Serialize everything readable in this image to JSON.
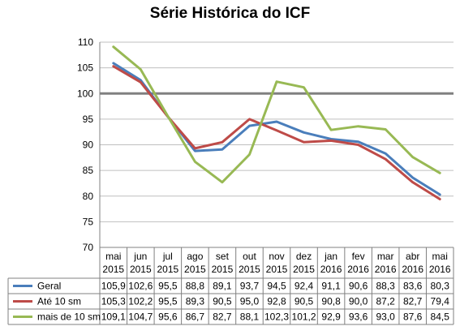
{
  "chart_data": {
    "type": "line",
    "title": "Série Histórica do ICF",
    "xlabel": "",
    "ylabel": "",
    "ylim": [
      70,
      110
    ],
    "yticks": [
      70,
      75,
      80,
      85,
      90,
      95,
      100,
      105,
      110
    ],
    "reference_line": 100,
    "legend": "data table below chart",
    "categories": [
      {
        "month": "mai",
        "year": "2015"
      },
      {
        "month": "jun",
        "year": "2015"
      },
      {
        "month": "jul",
        "year": "2015"
      },
      {
        "month": "ago",
        "year": "2015"
      },
      {
        "month": "set",
        "year": "2015"
      },
      {
        "month": "out",
        "year": "2015"
      },
      {
        "month": "nov",
        "year": "2015"
      },
      {
        "month": "dez",
        "year": "2015"
      },
      {
        "month": "jan",
        "year": "2016"
      },
      {
        "month": "fev",
        "year": "2016"
      },
      {
        "month": "mar",
        "year": "2016"
      },
      {
        "month": "abr",
        "year": "2016"
      },
      {
        "month": "mai",
        "year": "2016"
      }
    ],
    "series": [
      {
        "name": "Geral",
        "color": "#4a7ebb",
        "values": [
          105.9,
          102.6,
          95.5,
          88.8,
          89.1,
          93.7,
          94.5,
          92.4,
          91.1,
          90.6,
          88.3,
          83.6,
          80.3
        ],
        "labels": [
          "105,9",
          "102,6",
          "95,5",
          "88,8",
          "89,1",
          "93,7",
          "94,5",
          "92,4",
          "91,1",
          "90,6",
          "88,3",
          "83,6",
          "80,3"
        ]
      },
      {
        "name": "Até 10 sm",
        "color": "#be4b48",
        "values": [
          105.3,
          102.2,
          95.5,
          89.3,
          90.5,
          95.0,
          92.8,
          90.5,
          90.8,
          90.0,
          87.2,
          82.7,
          79.4
        ],
        "labels": [
          "105,3",
          "102,2",
          "95,5",
          "89,3",
          "90,5",
          "95,0",
          "92,8",
          "90,5",
          "90,8",
          "90,0",
          "87,2",
          "82,7",
          "79,4"
        ]
      },
      {
        "name": "mais de 10 sm",
        "color": "#98b954",
        "values": [
          109.1,
          104.7,
          95.6,
          86.7,
          82.7,
          88.1,
          102.3,
          101.2,
          92.9,
          93.6,
          93.0,
          87.6,
          84.5
        ],
        "labels": [
          "109,1",
          "104,7",
          "95,6",
          "86,7",
          "82,7",
          "88,1",
          "102,3",
          "101,2",
          "92,9",
          "93,6",
          "93,0",
          "87,6",
          "84,5"
        ]
      }
    ]
  }
}
